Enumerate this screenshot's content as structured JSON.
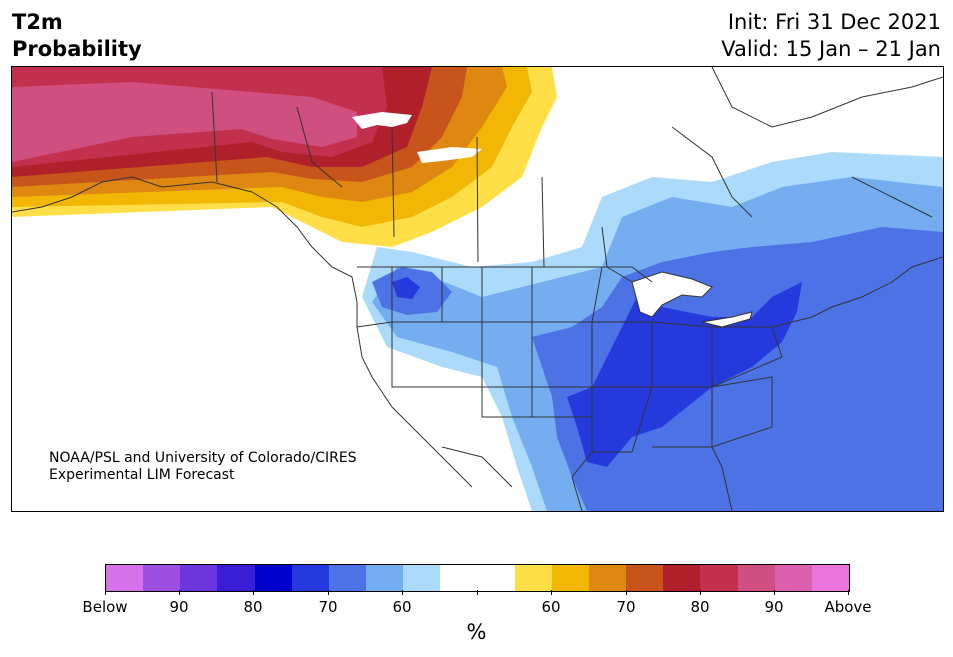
{
  "title": {
    "line1": "T2m",
    "line2": "Probability"
  },
  "header_right": {
    "init": "Init: Fri 31 Dec 2021",
    "valid": "Valid: 15 Jan – 21 Jan"
  },
  "credit": {
    "line1": "NOAA/PSL and University of Colorado/CIRES",
    "line2": "Experimental LIM Forecast"
  },
  "colors": {
    "below_95": "#d672ea",
    "below_90": "#9d4fe0",
    "below_85": "#6d36dc",
    "below_80": "#3a1ed6",
    "below_75": "#0000cd",
    "below_70": "#2539dd",
    "below_65": "#4c72e6",
    "below_60": "#74aef0",
    "below_55": "#acdafb",
    "neutral": "#ffffff",
    "above_55": "#ffdf47",
    "above_60": "#f2b705",
    "above_65": "#de8711",
    "above_70": "#c6541b",
    "above_75": "#b0202a",
    "above_80": "#c2304d",
    "above_85": "#cf4f80",
    "above_90": "#db5fae",
    "above_95": "#e874dc",
    "state_lines": "#333333"
  },
  "colorbar": {
    "labels": [
      "Below",
      "90",
      "80",
      "70",
      "60",
      "",
      "60",
      "70",
      "80",
      "90",
      "Above"
    ],
    "units": "%"
  }
}
